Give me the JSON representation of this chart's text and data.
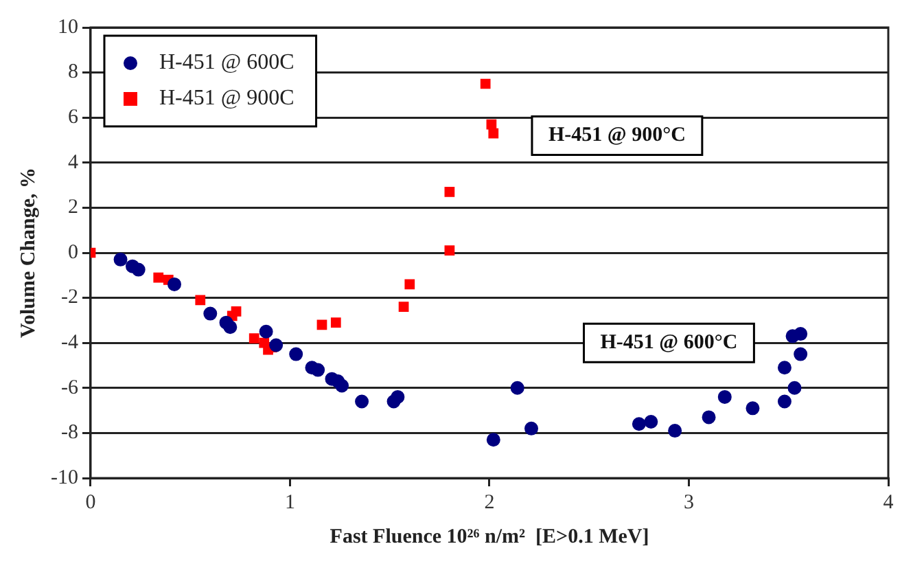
{
  "chart_data": {
    "type": "scatter",
    "xlabel": "Fast Fluence 10²⁶ n/m²  [E>0.1 MeV]",
    "ylabel": "Volume Change, %",
    "xlim": [
      0,
      4
    ],
    "xticks": [
      0,
      1,
      2,
      3,
      4
    ],
    "ylim": [
      -10,
      10
    ],
    "yticks": [
      -10,
      -8,
      -6,
      -4,
      -2,
      0,
      2,
      4,
      6,
      8,
      10
    ],
    "grid": "y",
    "legend": "top left",
    "series": [
      {
        "name": "H-451 @ 600C",
        "color": "#000080",
        "marker": "circle",
        "x": [
          0.15,
          0.21,
          0.24,
          0.42,
          0.6,
          0.68,
          0.7,
          0.88,
          0.93,
          1.03,
          1.11,
          1.14,
          1.21,
          1.24,
          1.26,
          1.36,
          1.52,
          1.54,
          2.02,
          2.14,
          2.21,
          2.75,
          2.81,
          2.93,
          3.1,
          3.18,
          3.32,
          3.48,
          3.48,
          3.52,
          3.56,
          3.56,
          3.53
        ],
        "values": [
          -0.3,
          -0.6,
          -0.75,
          -1.4,
          -2.7,
          -3.1,
          -3.3,
          -3.5,
          -4.1,
          -4.5,
          -5.1,
          -5.2,
          -5.6,
          -5.7,
          -5.9,
          -6.6,
          -6.6,
          -6.4,
          -8.3,
          -6.0,
          -7.8,
          -7.6,
          -7.5,
          -7.9,
          -7.3,
          -6.4,
          -6.9,
          -6.6,
          -5.1,
          -3.7,
          -3.6,
          -4.5,
          -6.0
        ]
      },
      {
        "name": "H-451 @ 900C",
        "color": "#ff0000",
        "marker": "square",
        "x": [
          0,
          0.34,
          0.39,
          0.55,
          0.71,
          0.73,
          0.82,
          0.87,
          0.89,
          0.91,
          1.16,
          1.23,
          1.57,
          1.6,
          1.8,
          1.8,
          1.98,
          2.01,
          2.02
        ],
        "values": [
          0,
          -1.1,
          -1.2,
          -2.1,
          -2.8,
          -2.6,
          -3.8,
          -4.0,
          -4.3,
          -4.2,
          -3.2,
          -3.1,
          -2.4,
          -1.4,
          2.7,
          0.1,
          7.5,
          5.7,
          5.3
        ]
      }
    ],
    "annotations": [
      "H-451 @ 900°C",
      "H-451 @ 600°C"
    ]
  }
}
